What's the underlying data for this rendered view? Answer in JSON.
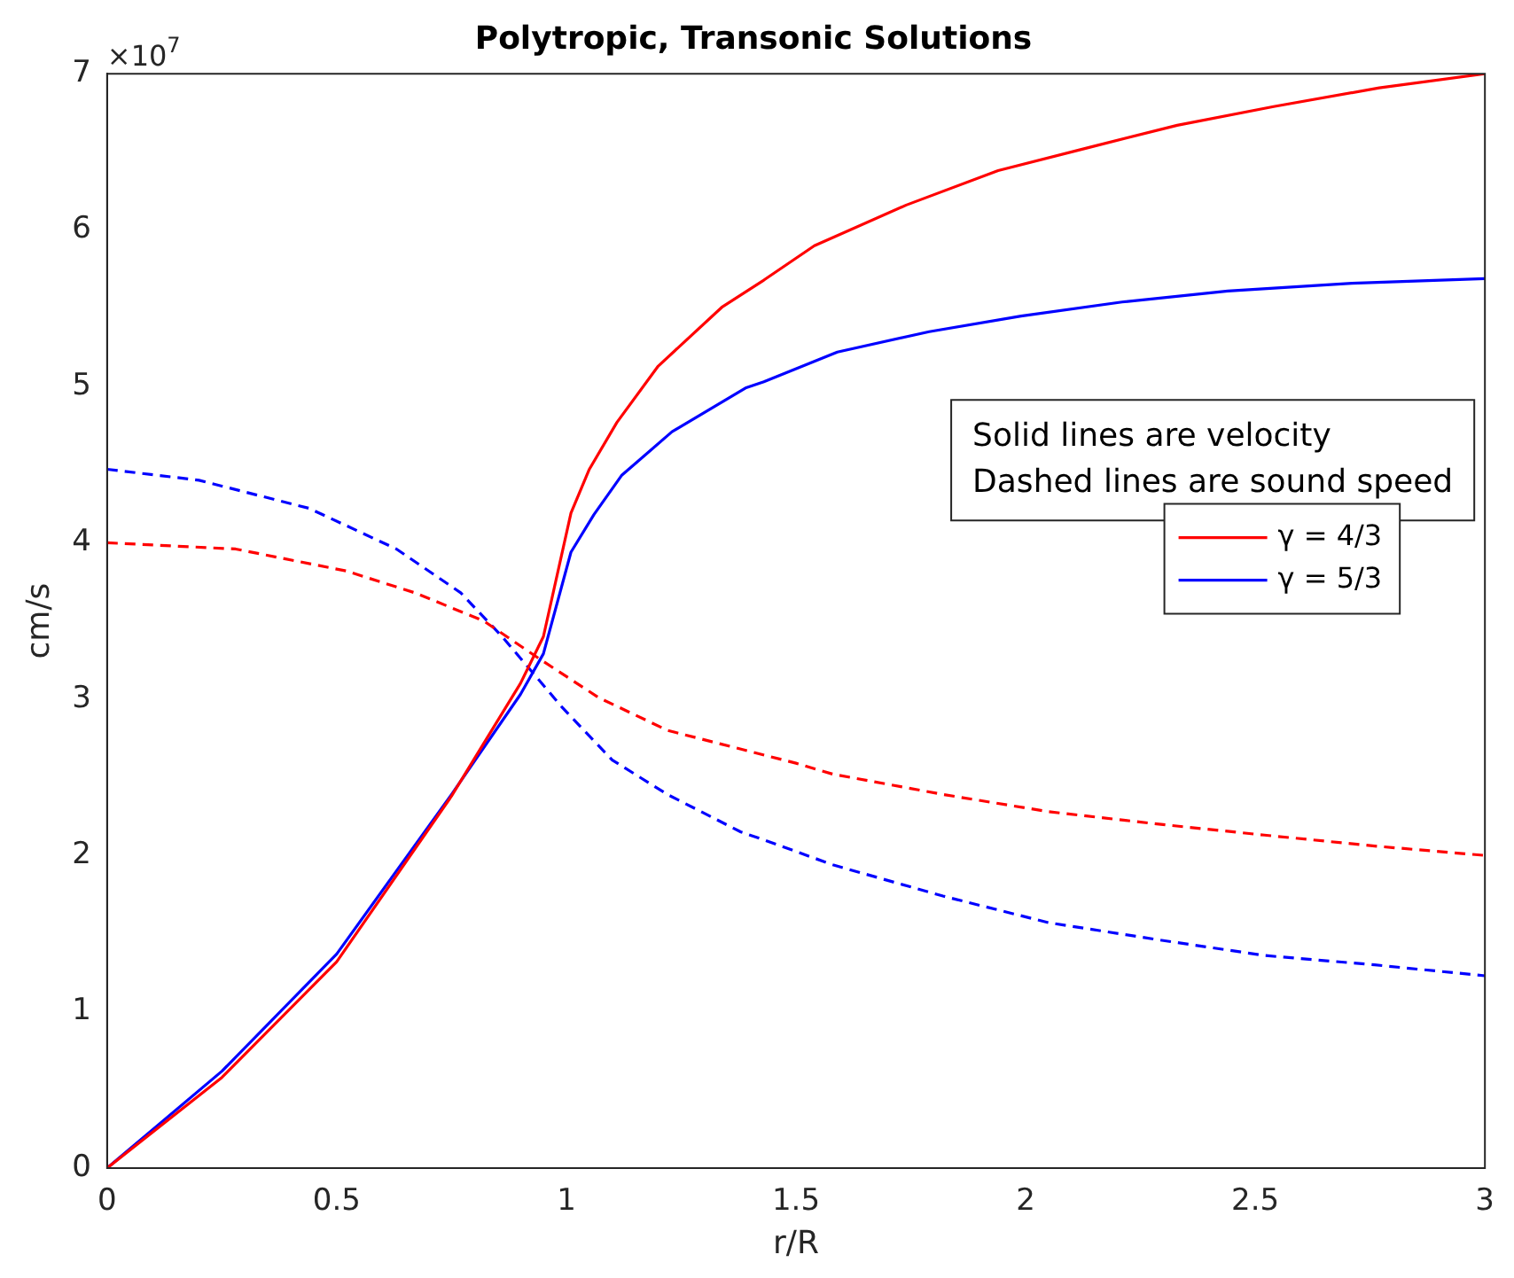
{
  "chart_data": {
    "type": "line",
    "title": "Polytropic, Transonic Solutions",
    "xlabel": "r/R",
    "ylabel": "cm/s",
    "xlim": [
      0,
      3
    ],
    "xticks": [
      0,
      0.5,
      1,
      1.5,
      2,
      2.5,
      3
    ],
    "ylim": [
      0,
      7
    ],
    "yticks": [
      0,
      1,
      2,
      3,
      4,
      5,
      6,
      7
    ],
    "grid": false,
    "legend": "right",
    "marker": "none",
    "annotations": [
      "×10$^{7}$",
      "Solid lines are velocity",
      "Dashed lines are sound speed"
    ],
    "series": [
      {
        "name": "γ = 4/3",
        "color": "#ff0000",
        "line_style": "solid",
        "x": [
          0,
          0.25,
          0.5,
          0.75,
          0.9,
          0.95,
          1.01,
          1.05,
          1.11,
          1.2,
          1.34,
          1.43,
          1.54,
          1.74,
          1.94,
          2.14,
          2.33,
          2.54,
          2.77,
          3.0
        ],
        "values": [
          0,
          0.58,
          1.32,
          2.38,
          3.1,
          3.4,
          4.19,
          4.47,
          4.77,
          5.13,
          5.51,
          5.68,
          5.9,
          6.16,
          6.38,
          6.53,
          6.67,
          6.79,
          6.91,
          7.0
        ]
      },
      {
        "name": "γ = 5/3",
        "color": "#0000ff",
        "line_style": "solid",
        "x": [
          0,
          0.25,
          0.5,
          0.75,
          0.9,
          0.95,
          1.01,
          1.06,
          1.12,
          1.23,
          1.39,
          1.43,
          1.59,
          1.79,
          1.99,
          2.21,
          2.44,
          2.71,
          3.0
        ],
        "values": [
          0,
          0.62,
          1.37,
          2.39,
          3.03,
          3.29,
          3.94,
          4.18,
          4.43,
          4.71,
          4.99,
          5.03,
          5.22,
          5.35,
          5.45,
          5.54,
          5.61,
          5.66,
          5.69
        ]
      },
      {
        "color": "#ff0000",
        "line_style": "dashed",
        "x": [
          0,
          0.28,
          0.52,
          0.67,
          0.82,
          0.94,
          1.07,
          1.22,
          1.5,
          1.58,
          1.82,
          2.05,
          2.29,
          2.52,
          2.76,
          3.0
        ],
        "values": [
          4.0,
          3.96,
          3.82,
          3.68,
          3.5,
          3.26,
          3.01,
          2.8,
          2.59,
          2.52,
          2.39,
          2.28,
          2.2,
          2.13,
          2.06,
          2.0
        ]
      },
      {
        "color": "#0000ff",
        "line_style": "dashed",
        "x": [
          0,
          0.2,
          0.44,
          0.63,
          0.77,
          0.86,
          0.99,
          1.1,
          1.22,
          1.38,
          1.43,
          1.58,
          1.82,
          2.05,
          2.29,
          2.52,
          2.76,
          3.0
        ],
        "values": [
          4.47,
          4.4,
          4.22,
          3.96,
          3.68,
          3.4,
          2.95,
          2.61,
          2.39,
          2.15,
          2.1,
          1.94,
          1.74,
          1.57,
          1.46,
          1.36,
          1.3,
          1.23
        ]
      }
    ]
  }
}
